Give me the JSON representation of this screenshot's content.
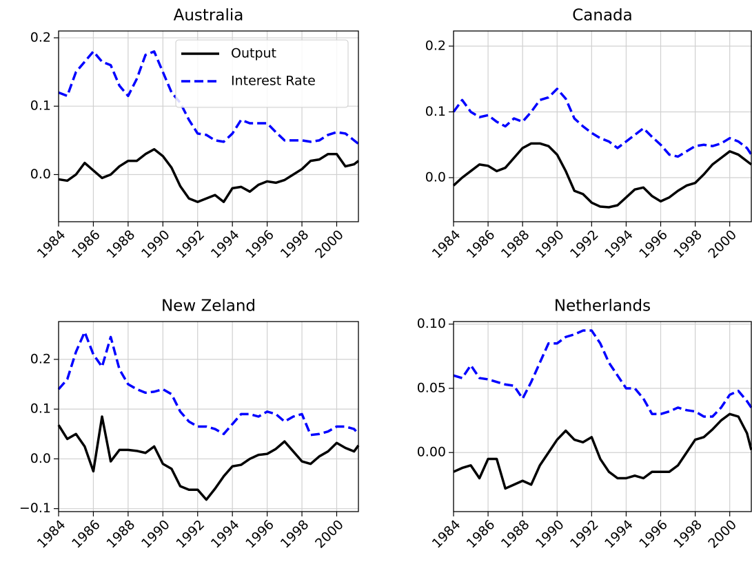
{
  "chart_data": [
    {
      "type": "line",
      "title": "Australia",
      "legend": "upper right",
      "grid": true,
      "x": [
        1984,
        1984.5,
        1985,
        1985.5,
        1986,
        1986.5,
        1987,
        1987.5,
        1988,
        1988.5,
        1989,
        1989.5,
        1990,
        1990.5,
        1991,
        1991.5,
        1992,
        1992.5,
        1993,
        1993.5,
        1994,
        1994.5,
        1995,
        1995.5,
        1996,
        1996.5,
        1997,
        1997.5,
        1998,
        1998.5,
        1999,
        1999.5,
        2000,
        2000.5,
        2001,
        2001.25
      ],
      "xlim": [
        1984,
        2001.25
      ],
      "xticks": [
        1984,
        1986,
        1988,
        1990,
        1992,
        1994,
        1996,
        1998,
        2000
      ],
      "ylim": [
        -0.069,
        0.21
      ],
      "yticks": [
        {
          "value": 0,
          "label": "0.0"
        },
        0.1,
        0.2
      ],
      "series": [
        {
          "name": "Output",
          "color": "#000000",
          "dash": "solid",
          "values": [
            -0.007,
            -0.009,
            0.0,
            0.017,
            0.006,
            -0.005,
            0.0,
            0.012,
            0.02,
            0.02,
            0.03,
            0.037,
            0.027,
            0.01,
            -0.017,
            -0.035,
            -0.04,
            -0.035,
            -0.03,
            -0.04,
            -0.02,
            -0.018,
            -0.025,
            -0.015,
            -0.01,
            -0.012,
            -0.008,
            0.0,
            0.008,
            0.02,
            0.022,
            0.03,
            0.03,
            0.012,
            0.015,
            0.02
          ]
        },
        {
          "name": "Interest Rate",
          "color": "#0000ff",
          "dash": "dashed",
          "values": [
            0.12,
            0.115,
            0.15,
            0.165,
            0.18,
            0.165,
            0.16,
            0.13,
            0.115,
            0.14,
            0.175,
            0.18,
            0.15,
            0.12,
            0.105,
            0.08,
            0.06,
            0.058,
            0.05,
            0.048,
            0.06,
            0.08,
            0.075,
            0.075,
            0.075,
            0.062,
            0.05,
            0.05,
            0.05,
            0.048,
            0.05,
            0.058,
            0.062,
            0.06,
            0.05,
            0.045
          ]
        }
      ]
    },
    {
      "type": "line",
      "title": "Canada",
      "grid": true,
      "x": [
        1984,
        1984.5,
        1985,
        1985.5,
        1986,
        1986.5,
        1987,
        1987.5,
        1988,
        1988.5,
        1989,
        1989.5,
        1990,
        1990.5,
        1991,
        1991.5,
        1992,
        1992.5,
        1993,
        1993.5,
        1994,
        1994.5,
        1995,
        1995.5,
        1996,
        1996.5,
        1997,
        1997.5,
        1998,
        1998.5,
        1999,
        1999.5,
        2000,
        2000.5,
        2001,
        2001.25
      ],
      "xlim": [
        1984,
        2001.25
      ],
      "xticks": [
        1984,
        1986,
        1988,
        1990,
        1992,
        1994,
        1996,
        1998,
        2000
      ],
      "ylim": [
        -0.067,
        0.223
      ],
      "yticks": [
        {
          "value": 0,
          "label": "0.0"
        },
        0.1,
        0.2
      ],
      "series": [
        {
          "color": "#000000",
          "dash": "solid",
          "values": [
            -0.012,
            0.0,
            0.01,
            0.02,
            0.018,
            0.01,
            0.015,
            0.03,
            0.045,
            0.052,
            0.052,
            0.048,
            0.035,
            0.01,
            -0.02,
            -0.025,
            -0.038,
            -0.044,
            -0.045,
            -0.042,
            -0.03,
            -0.018,
            -0.015,
            -0.028,
            -0.036,
            -0.03,
            -0.02,
            -0.012,
            -0.008,
            0.005,
            0.02,
            0.03,
            0.04,
            0.035,
            0.025,
            0.02
          ]
        },
        {
          "color": "#0000ff",
          "dash": "dashed",
          "values": [
            0.1,
            0.118,
            0.1,
            0.092,
            0.095,
            0.085,
            0.078,
            0.09,
            0.085,
            0.1,
            0.118,
            0.122,
            0.135,
            0.12,
            0.09,
            0.078,
            0.068,
            0.06,
            0.055,
            0.045,
            0.055,
            0.065,
            0.075,
            0.062,
            0.05,
            0.035,
            0.032,
            0.04,
            0.048,
            0.05,
            0.048,
            0.052,
            0.06,
            0.055,
            0.045,
            0.035
          ]
        }
      ]
    },
    {
      "type": "line",
      "title": "New Zeland",
      "grid": true,
      "x": [
        1984,
        1984.5,
        1985,
        1985.5,
        1986,
        1986.5,
        1987,
        1987.5,
        1988,
        1988.5,
        1989,
        1989.5,
        1990,
        1990.5,
        1991,
        1991.5,
        1992,
        1992.5,
        1993,
        1993.5,
        1994,
        1994.5,
        1995,
        1995.5,
        1996,
        1996.5,
        1997,
        1997.5,
        1998,
        1998.5,
        1999,
        1999.5,
        2000,
        2000.5,
        2001,
        2001.25
      ],
      "xlim": [
        1984,
        2001.25
      ],
      "xticks": [
        1984,
        1986,
        1988,
        1990,
        1992,
        1994,
        1996,
        1998,
        2000
      ],
      "ylim": [
        -0.106,
        0.276
      ],
      "yticks": [
        {
          "value": -0.1,
          "label": "−0.1"
        },
        {
          "value": 0,
          "label": "0.0"
        },
        0.1,
        0.2
      ],
      "series": [
        {
          "color": "#000000",
          "dash": "solid",
          "values": [
            0.068,
            0.04,
            0.05,
            0.025,
            -0.025,
            0.085,
            -0.005,
            0.018,
            0.018,
            0.016,
            0.012,
            0.025,
            -0.01,
            -0.02,
            -0.055,
            -0.062,
            -0.062,
            -0.082,
            -0.06,
            -0.035,
            -0.015,
            -0.012,
            0.0,
            0.008,
            0.01,
            0.02,
            0.035,
            0.015,
            -0.005,
            -0.01,
            0.005,
            0.015,
            0.032,
            0.022,
            0.015,
            0.027
          ]
        },
        {
          "color": "#0000ff",
          "dash": "dashed",
          "values": [
            0.14,
            0.16,
            0.215,
            0.255,
            0.21,
            0.185,
            0.245,
            0.18,
            0.15,
            0.14,
            0.133,
            0.135,
            0.14,
            0.13,
            0.095,
            0.075,
            0.065,
            0.065,
            0.06,
            0.05,
            0.07,
            0.09,
            0.09,
            0.085,
            0.095,
            0.09,
            0.075,
            0.085,
            0.09,
            0.048,
            0.05,
            0.055,
            0.065,
            0.065,
            0.06,
            0.05
          ]
        }
      ]
    },
    {
      "type": "line",
      "title": "Netherlands",
      "grid": true,
      "x": [
        1984,
        1984.5,
        1985,
        1985.5,
        1986,
        1986.5,
        1987,
        1987.5,
        1988,
        1988.5,
        1989,
        1989.5,
        1990,
        1990.5,
        1991,
        1991.5,
        1992,
        1992.5,
        1993,
        1993.5,
        1994,
        1994.5,
        1995,
        1995.5,
        1996,
        1996.5,
        1997,
        1997.5,
        1998,
        1998.5,
        1999,
        1999.5,
        2000,
        2000.5,
        2001,
        2001.25
      ],
      "xlim": [
        1984,
        2001.25
      ],
      "xticks": [
        1984,
        1986,
        1988,
        1990,
        1992,
        1994,
        1996,
        1998,
        2000
      ],
      "ylim": [
        -0.046,
        0.102
      ],
      "yticks": [
        {
          "value": 0,
          "label": "0.00"
        },
        0.05,
        {
          "value": 0.1,
          "label": "0.10"
        }
      ],
      "series": [
        {
          "color": "#000000",
          "dash": "solid",
          "values": [
            -0.015,
            -0.012,
            -0.01,
            -0.02,
            -0.005,
            -0.005,
            -0.028,
            -0.025,
            -0.022,
            -0.025,
            -0.01,
            0.0,
            0.01,
            0.017,
            0.01,
            0.008,
            0.012,
            -0.005,
            -0.015,
            -0.02,
            -0.02,
            -0.018,
            -0.02,
            -0.015,
            -0.015,
            -0.015,
            -0.01,
            0.0,
            0.01,
            0.012,
            0.018,
            0.025,
            0.03,
            0.028,
            0.015,
            0.002
          ]
        },
        {
          "color": "#0000ff",
          "dash": "dashed",
          "values": [
            0.06,
            0.058,
            0.068,
            0.058,
            0.057,
            0.055,
            0.053,
            0.052,
            0.042,
            0.055,
            0.07,
            0.085,
            0.085,
            0.09,
            0.092,
            0.095,
            0.095,
            0.085,
            0.07,
            0.06,
            0.05,
            0.05,
            0.042,
            0.03,
            0.03,
            0.032,
            0.035,
            0.033,
            0.032,
            0.028,
            0.028,
            0.035,
            0.045,
            0.048,
            0.04,
            0.035
          ]
        }
      ]
    }
  ]
}
